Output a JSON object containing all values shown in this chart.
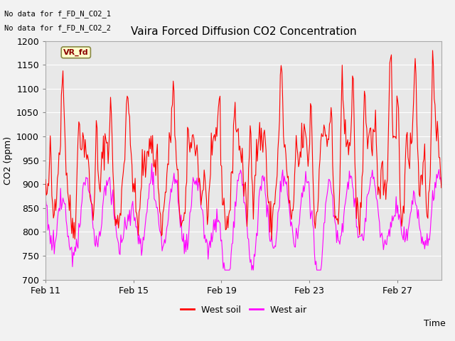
{
  "title": "Vaira Forced Diffusion CO2 Concentration",
  "xlabel": "Time",
  "ylabel": "CO2 (ppm)",
  "ylim": [
    700,
    1200
  ],
  "yticks": [
    700,
    750,
    800,
    850,
    900,
    950,
    1000,
    1050,
    1100,
    1150,
    1200
  ],
  "xtick_labels": [
    "Feb 11",
    "Feb 15",
    "Feb 19",
    "Feb 23",
    "Feb 27"
  ],
  "no_data_text1": "No data for f_FD_N_CO2_1",
  "no_data_text2": "No data for f_FD_N_CO2_2",
  "vr_fd_label": "VR_fd",
  "legend_entries": [
    "West soil",
    "West air"
  ],
  "line_colors": [
    "#ff0000",
    "#ff00ff"
  ],
  "plot_bg_color": "#e8e8e8",
  "fig_bg": "#f2f2f2",
  "grid_color": "#ffffff",
  "n_points": 500
}
